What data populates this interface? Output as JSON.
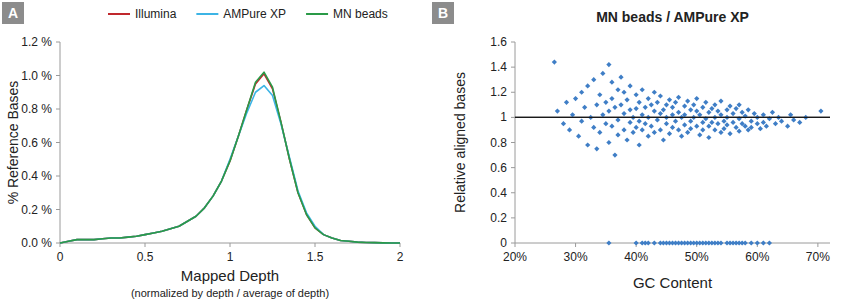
{
  "chart_data": [
    {
      "type": "line",
      "annotations": [
        "A"
      ],
      "x_label": "Mapped Depth",
      "x_label_note": "(normalized by depth / average of depth)",
      "y_label": "% Reference Bases",
      "x": [
        0,
        0.05,
        0.1,
        0.15,
        0.2,
        0.25,
        0.3,
        0.35,
        0.4,
        0.45,
        0.5,
        0.55,
        0.6,
        0.65,
        0.7,
        0.75,
        0.8,
        0.85,
        0.9,
        0.95,
        1,
        1.05,
        1.1,
        1.15,
        1.2,
        1.25,
        1.3,
        1.35,
        1.4,
        1.45,
        1.5,
        1.55,
        1.6,
        1.65,
        1.7,
        1.75,
        1.8,
        1.85,
        1.9,
        1.95,
        2
      ],
      "series": [
        {
          "name": "Illumina",
          "color": "#c0282d",
          "values": [
            0,
            0.01,
            0.02,
            0.02,
            0.02,
            0.025,
            0.03,
            0.03,
            0.035,
            0.04,
            0.05,
            0.06,
            0.07,
            0.085,
            0.1,
            0.13,
            0.16,
            0.21,
            0.28,
            0.37,
            0.49,
            0.64,
            0.8,
            0.95,
            1.01,
            0.92,
            0.72,
            0.5,
            0.3,
            0.17,
            0.09,
            0.05,
            0.03,
            0.015,
            0.01,
            0.005,
            0.003,
            0.002,
            0.001,
            0,
            0
          ]
        },
        {
          "name": "AMPure XP",
          "color": "#3cb4e5",
          "values": [
            0,
            0.01,
            0.02,
            0.02,
            0.02,
            0.025,
            0.03,
            0.03,
            0.035,
            0.04,
            0.05,
            0.06,
            0.07,
            0.085,
            0.1,
            0.13,
            0.16,
            0.21,
            0.28,
            0.37,
            0.5,
            0.64,
            0.78,
            0.9,
            0.94,
            0.88,
            0.71,
            0.51,
            0.31,
            0.18,
            0.1,
            0.05,
            0.03,
            0.015,
            0.01,
            0.005,
            0.003,
            0.002,
            0.001,
            0,
            0
          ]
        },
        {
          "name": "MN beads",
          "color": "#2a9a47",
          "values": [
            0,
            0.01,
            0.02,
            0.02,
            0.02,
            0.025,
            0.03,
            0.03,
            0.035,
            0.04,
            0.05,
            0.06,
            0.07,
            0.085,
            0.1,
            0.13,
            0.16,
            0.21,
            0.28,
            0.37,
            0.49,
            0.64,
            0.8,
            0.96,
            1.02,
            0.93,
            0.72,
            0.5,
            0.3,
            0.17,
            0.09,
            0.05,
            0.03,
            0.015,
            0.01,
            0.005,
            0.003,
            0.002,
            0.001,
            0,
            0
          ]
        }
      ],
      "xlim": [
        0,
        2
      ],
      "ylim": [
        0,
        1.2
      ],
      "xticks": [
        0,
        0.5,
        1,
        1.5,
        2
      ],
      "yticks": [
        {
          "value": 0,
          "label": "0.0 %"
        },
        {
          "value": 0.2,
          "label": "0.2 %"
        },
        {
          "value": 0.4,
          "label": "0.4 %"
        },
        {
          "value": 0.6,
          "label": "0.6 %"
        },
        {
          "value": 0.8,
          "label": "0.8 %"
        },
        {
          "value": 1,
          "label": "1.0 %"
        },
        {
          "value": 1.2,
          "label": "1.2 %"
        }
      ],
      "grid": false,
      "legend": "top"
    },
    {
      "type": "scatter",
      "annotations": [
        "B"
      ],
      "title": "MN beads / AMPure XP",
      "x_label": "GC Content",
      "y_label": "Relative aligned bases",
      "color": "#3f7ec6",
      "marker": "diamond",
      "reference_y": 1,
      "x": [
        26.5,
        27,
        28,
        28.5,
        29,
        29.5,
        30,
        30.5,
        31,
        31,
        31.5,
        32,
        32,
        32.5,
        33,
        33,
        33.5,
        33.5,
        34,
        34,
        34.5,
        34.5,
        35,
        35,
        35.5,
        35.5,
        35.5,
        35.5,
        36,
        36,
        36,
        36.5,
        36.5,
        37,
        37,
        37,
        37.5,
        37.5,
        38,
        38,
        38,
        38.5,
        38.5,
        39,
        39,
        39,
        39.5,
        39.5,
        40,
        40,
        40,
        40,
        40.5,
        40.5,
        40.5,
        41,
        41,
        41,
        41,
        41.5,
        41.5,
        41.5,
        42,
        42,
        42,
        42,
        42.5,
        42.5,
        43,
        43,
        43,
        43,
        43.5,
        43.5,
        44,
        44,
        44,
        44,
        44.5,
        44.5,
        44.5,
        45,
        45,
        45,
        45,
        45.5,
        45.5,
        45.5,
        46,
        46,
        46,
        46,
        46.5,
        46.5,
        46.5,
        47,
        47,
        47,
        47,
        47.5,
        47.5,
        47.5,
        48,
        48,
        48,
        48,
        48.5,
        48.5,
        48.5,
        49,
        49,
        49,
        49,
        49.5,
        49.5,
        49.5,
        50,
        50,
        50,
        50,
        50.5,
        50.5,
        50.5,
        51,
        51,
        51,
        51,
        51.5,
        51.5,
        51.5,
        52,
        52,
        52,
        52,
        52.5,
        52.5,
        52.5,
        53,
        53,
        53,
        53,
        53.5,
        53.5,
        53.5,
        54,
        54,
        54,
        54,
        54.5,
        54.5,
        55,
        55,
        55,
        55,
        55.5,
        55.5,
        55.5,
        56,
        56,
        56,
        56.5,
        56.5,
        56.5,
        57,
        57,
        57,
        57,
        57.5,
        57.5,
        57.5,
        58,
        58,
        58,
        58.5,
        58.5,
        59,
        59,
        59,
        59.5,
        60,
        60,
        60,
        60.5,
        61,
        61,
        61,
        61.5,
        62,
        62,
        62.5,
        63,
        63.5,
        64,
        65,
        65.5,
        66,
        67,
        68,
        70.5
      ],
      "values": [
        1.44,
        1.05,
        0.95,
        1.12,
        0.9,
        1.02,
        1.15,
        0.85,
        1.2,
        0.97,
        1.08,
        0.78,
        1.25,
        1.0,
        1.3,
        0.92,
        1.1,
        0.75,
        1.18,
        0.88,
        1.02,
        1.35,
        0.95,
        1.12,
        1.42,
        0.8,
        1.05,
        0,
        1.28,
        0.93,
        1.15,
        0.7,
        1.08,
        1.22,
        0.98,
        0.86,
        1.32,
        1.1,
        0.9,
        1.03,
        1.2,
        0.82,
        1.14,
        0.96,
        1.25,
        1.06,
        0.88,
        1.0,
        1.18,
        0.92,
        1.07,
        0,
        0.78,
        1.12,
        0.97,
        1.22,
        1.02,
        0.9,
        0,
        1.08,
        0.95,
        0,
        1.15,
        0.85,
        1.0,
        0,
        1.1,
        0.93,
        1.05,
        0.88,
        1.2,
        0,
        0.98,
        1.12,
        0.9,
        1.03,
        1.17,
        0,
        0.82,
        1.06,
        0,
        0.95,
        1.1,
        1.0,
        0,
        0.87,
        1.14,
        0,
        1.02,
        0.92,
        1.08,
        0,
        0.97,
        1.12,
        0,
        0.9,
        1.04,
        1.16,
        0,
        0.85,
        1.0,
        0,
        1.09,
        0.94,
        1.02,
        0,
        0.88,
        1.13,
        0,
        0.97,
        1.06,
        0.91,
        0,
        1.1,
        1.0,
        0,
        0.93,
        1.05,
        1.15,
        0,
        0.86,
        1.02,
        0,
        0.96,
        1.08,
        0.9,
        0,
        1.12,
        0.99,
        0,
        0.93,
        1.04,
        0.84,
        0,
        1.07,
        0.96,
        0,
        1.0,
        0.9,
        1.1,
        0,
        0.95,
        1.05,
        0,
        0.88,
        1.02,
        1.13,
        0,
        0.97,
        0.91,
        1.06,
        0.94,
        1.0,
        0,
        0.87,
        1.09,
        0,
        0.96,
        1.03,
        0,
        0.92,
        1.07,
        0,
        0.99,
        0.89,
        1.1,
        0,
        0.95,
        1.04,
        0,
        0.93,
        1.01,
        0,
        0.9,
        1.06,
        0.97,
        0.92,
        0,
        1.03,
        0.95,
        1.0,
        0,
        0.91,
        1.02,
        0.96,
        0,
        0.93,
        0.99,
        0,
        1.04,
        0.95,
        1.0,
        0.97,
        0.93,
        1.02,
        0.98,
        0.96,
        1.0,
        1.05
      ],
      "xlim": [
        20,
        72
      ],
      "ylim": [
        0,
        1.6
      ],
      "xticks": [
        {
          "value": 20,
          "label": "20%"
        },
        {
          "value": 30,
          "label": "30%"
        },
        {
          "value": 40,
          "label": "40%"
        },
        {
          "value": 50,
          "label": "50%"
        },
        {
          "value": 60,
          "label": "60%"
        },
        {
          "value": 70,
          "label": "70%"
        }
      ],
      "yticks": [
        0,
        0.2,
        0.4,
        0.6,
        0.8,
        1,
        1.2,
        1.4,
        1.6
      ],
      "grid": false
    }
  ]
}
